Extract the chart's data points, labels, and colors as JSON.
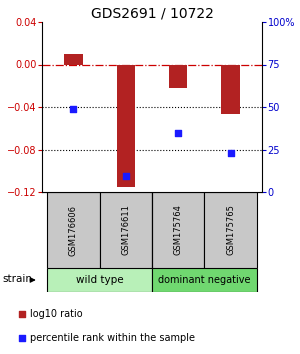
{
  "title": "GDS2691 / 10722",
  "samples": [
    "GSM176606",
    "GSM176611",
    "GSM175764",
    "GSM175765"
  ],
  "log10_ratio": [
    0.01,
    -0.115,
    -0.022,
    -0.047
  ],
  "percentile_rank": [
    49,
    9.5,
    35,
    23
  ],
  "ylim_left": [
    -0.12,
    0.04
  ],
  "ylim_right": [
    0,
    100
  ],
  "yticks_left": [
    -0.12,
    -0.08,
    -0.04,
    0.0,
    0.04
  ],
  "yticks_right": [
    0,
    25,
    50,
    75,
    100
  ],
  "ytick_labels_right": [
    "0",
    "25",
    "50",
    "75",
    "100%"
  ],
  "bar_color": "#b22222",
  "dot_color": "#1a1aff",
  "bar_width": 0.35,
  "hline_color": "#cc0000",
  "dotted_lines": [
    -0.04,
    -0.08
  ],
  "strain_label": "strain",
  "legend_red_label": "log10 ratio",
  "legend_blue_label": "percentile rank within the sample",
  "sample_box_color": "#c8c8c8",
  "title_fontsize": 10,
  "axis_color_left": "#cc0000",
  "axis_color_right": "#0000cc",
  "group_wt_color": "#b8f0b8",
  "group_dn_color": "#70d870",
  "group_wt_label": "wild type",
  "group_dn_label": "dominant negative"
}
